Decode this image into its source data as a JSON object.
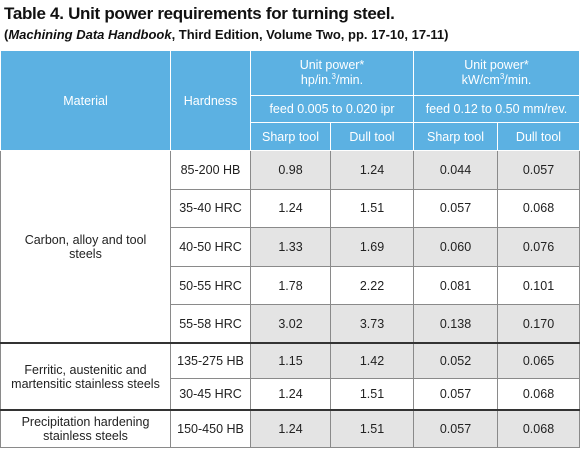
{
  "header": {
    "title": "Table 4. Unit power requirements for turning steel.",
    "subtitle": {
      "open": "(",
      "italic": "Machining Data Handbook",
      "rest": ", Third Edition, Volume Two, pp. 17-10, 17-11)"
    }
  },
  "table": {
    "header": {
      "material": "Material",
      "hardness": "Hardness",
      "groups": [
        {
          "title": "Unit power*",
          "unit": [
            "hp/in.",
            "3",
            "/min."
          ],
          "feed": "feed 0.005 to 0.020 ipr",
          "tools": [
            "Sharp tool",
            "Dull tool"
          ]
        },
        {
          "title": "Unit power*",
          "unit": [
            "kW/cm",
            "3",
            "/min."
          ],
          "feed": "feed 0.12 to 0.50 mm/rev.",
          "tools": [
            "Sharp tool",
            "Dull tool"
          ]
        }
      ]
    },
    "groups": [
      {
        "material": "Carbon, alloy and tool steels",
        "rows": [
          [
            "85-200 HB",
            "0.98",
            "1.24",
            "0.044",
            "0.057"
          ],
          [
            "35-40 HRC",
            "1.24",
            "1.51",
            "0.057",
            "0.068"
          ],
          [
            "40-50 HRC",
            "1.33",
            "1.69",
            "0.060",
            "0.076"
          ],
          [
            "50-55 HRC",
            "1.78",
            "2.22",
            "0.081",
            "0.101"
          ],
          [
            "55-58 HRC",
            "3.02",
            "3.73",
            "0.138",
            "0.170"
          ]
        ]
      },
      {
        "material": "Ferritic, austenitic and martensitic stainless steels",
        "rows": [
          [
            "135-275 HB",
            "1.15",
            "1.42",
            "0.052",
            "0.065"
          ],
          [
            "30-45 HRC",
            "1.24",
            "1.51",
            "0.057",
            "0.068"
          ]
        ]
      },
      {
        "material": "Precipitation hardening stainless steels",
        "rows": [
          [
            "150-450 HB",
            "1.24",
            "1.51",
            "0.057",
            "0.068"
          ]
        ]
      }
    ]
  }
}
